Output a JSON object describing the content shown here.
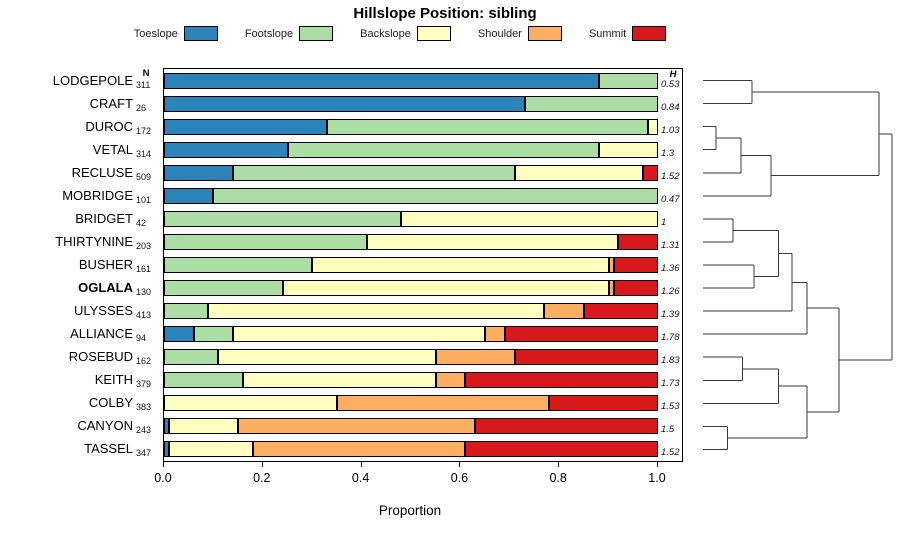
{
  "title": "Hillslope Position: sibling",
  "columns": {
    "n_header": "N",
    "h_header": "H"
  },
  "x_axis": {
    "label": "Proportion",
    "tick_values": [
      0,
      0.2,
      0.4,
      0.6,
      0.8,
      1.0
    ],
    "tick_labels": [
      "0.0",
      "0.2",
      "0.4",
      "0.6",
      "0.8",
      "1.0"
    ]
  },
  "chart_data": {
    "type": "bar",
    "stacked": true,
    "orientation": "horizontal",
    "title": "Hillslope Position: sibling",
    "xlabel": "Proportion",
    "xlim": [
      0,
      1
    ],
    "legend_position": "top",
    "categories": [
      "Toeslope",
      "Footslope",
      "Backslope",
      "Shoulder",
      "Summit"
    ],
    "colors": [
      "#2B83BA",
      "#ABDDA4",
      "#FFFFBF",
      "#FDAE61",
      "#D7191C"
    ],
    "rows": [
      {
        "name": "LODGEPOLE",
        "n": 311,
        "h": "0.53",
        "bold": false,
        "proportions": [
          0.88,
          0.12,
          0,
          0,
          0
        ]
      },
      {
        "name": "CRAFT",
        "n": 26,
        "h": "0.84",
        "bold": false,
        "proportions": [
          0.73,
          0.27,
          0,
          0,
          0
        ]
      },
      {
        "name": "DUROC",
        "n": 172,
        "h": "1.03",
        "bold": false,
        "proportions": [
          0.33,
          0.65,
          0.02,
          0,
          0
        ]
      },
      {
        "name": "VETAL",
        "n": 314,
        "h": "1.3",
        "bold": false,
        "proportions": [
          0.25,
          0.63,
          0.12,
          0,
          0
        ]
      },
      {
        "name": "RECLUSE",
        "n": 509,
        "h": "1.52",
        "bold": false,
        "proportions": [
          0.14,
          0.57,
          0.26,
          0,
          0.03
        ]
      },
      {
        "name": "MOBRIDGE",
        "n": 101,
        "h": "0.47",
        "bold": false,
        "proportions": [
          0.1,
          0.9,
          0,
          0,
          0
        ]
      },
      {
        "name": "BRIDGET",
        "n": 42,
        "h": "1",
        "bold": false,
        "proportions": [
          0,
          0.48,
          0.52,
          0,
          0
        ]
      },
      {
        "name": "THIRTYNINE",
        "n": 203,
        "h": "1.31",
        "bold": false,
        "proportions": [
          0,
          0.41,
          0.51,
          0,
          0.08
        ]
      },
      {
        "name": "BUSHER",
        "n": 161,
        "h": "1.36",
        "bold": false,
        "proportions": [
          0,
          0.3,
          0.6,
          0.01,
          0.09
        ]
      },
      {
        "name": "OGLALA",
        "n": 130,
        "h": "1.26",
        "bold": true,
        "proportions": [
          0,
          0.24,
          0.66,
          0.01,
          0.09
        ]
      },
      {
        "name": "ULYSSES",
        "n": 413,
        "h": "1.39",
        "bold": false,
        "proportions": [
          0,
          0.09,
          0.68,
          0.08,
          0.15
        ]
      },
      {
        "name": "ALLIANCE",
        "n": 94,
        "h": "1.78",
        "bold": false,
        "proportions": [
          0.06,
          0.08,
          0.51,
          0.04,
          0.31
        ]
      },
      {
        "name": "ROSEBUD",
        "n": 162,
        "h": "1.83",
        "bold": false,
        "proportions": [
          0,
          0.11,
          0.44,
          0.16,
          0.29
        ]
      },
      {
        "name": "KEITH",
        "n": 379,
        "h": "1.73",
        "bold": false,
        "proportions": [
          0,
          0.16,
          0.39,
          0.06,
          0.39
        ]
      },
      {
        "name": "COLBY",
        "n": 383,
        "h": "1.53",
        "bold": false,
        "proportions": [
          0,
          0,
          0.35,
          0.43,
          0.22
        ]
      },
      {
        "name": "CANYON",
        "n": 243,
        "h": "1.5",
        "bold": false,
        "proportions": [
          0.01,
          0,
          0.14,
          0.48,
          0.37
        ]
      },
      {
        "name": "TASSEL",
        "n": 347,
        "h": "1.52",
        "bold": false,
        "proportions": [
          0.01,
          0,
          0.17,
          0.43,
          0.39
        ]
      }
    ],
    "dendrogram": {
      "orientation": "right",
      "merges": [
        [
          "L0",
          "L1",
          0.26
        ],
        [
          "L2",
          "L3",
          0.07
        ],
        [
          "M1",
          "L4",
          0.2
        ],
        [
          "M2",
          "L5",
          0.36
        ],
        [
          "M0",
          "M3",
          0.93
        ],
        [
          "L6",
          "L7",
          0.16
        ],
        [
          "L8",
          "L9",
          0.27
        ],
        [
          "M5",
          "M6",
          0.4
        ],
        [
          "M7",
          "L10",
          0.47
        ],
        [
          "M8",
          "L11",
          0.55
        ],
        [
          "L12",
          "L13",
          0.21
        ],
        [
          "M10",
          "L14",
          0.4
        ],
        [
          "L15",
          "L16",
          0.13
        ],
        [
          "M11",
          "M12",
          0.55
        ],
        [
          "M9",
          "M13",
          0.72
        ],
        [
          "M4",
          "M14",
          1.0
        ]
      ]
    }
  }
}
